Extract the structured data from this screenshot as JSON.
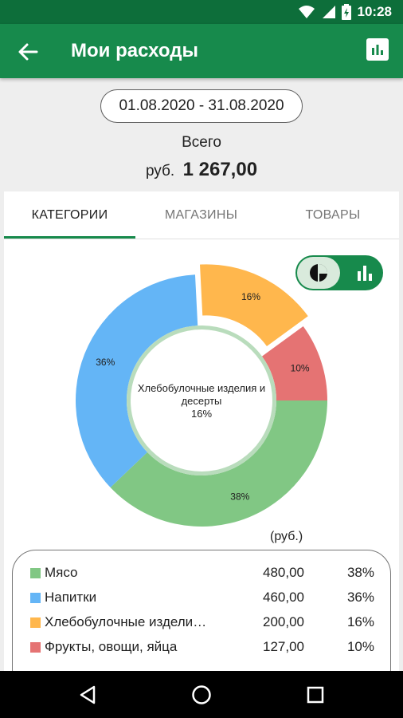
{
  "status_bar": {
    "time": "10:28"
  },
  "app_bar": {
    "title": "Мои расходы"
  },
  "date_range": "01.08.2020 - 31.08.2020",
  "total": {
    "label": "Всего",
    "currency": "руб.",
    "amount": "1 267,00"
  },
  "tabs": [
    {
      "label": "КАТЕГОРИИ",
      "active": true
    },
    {
      "label": "МАГАЗИНЫ",
      "active": false
    },
    {
      "label": "ТОВАРЫ",
      "active": false
    }
  ],
  "chart_data": {
    "type": "pie",
    "unit_label": "(руб.)",
    "center_label": {
      "name_line1": "Хлебобулочные изделия и",
      "name_line2": "десерты",
      "percent": "16%"
    },
    "slices": [
      {
        "name": "Мясо",
        "value": 480.0,
        "percent": 38,
        "label": "38%",
        "color": "#81c784"
      },
      {
        "name": "Напитки",
        "value": 460.0,
        "percent": 36,
        "label": "36%",
        "color": "#64b5f6"
      },
      {
        "name": "Хлебобулочные изделия и десерты",
        "value": 200.0,
        "percent": 16,
        "label": "16%",
        "color": "#ffb74d",
        "selected": true
      },
      {
        "name": "Фрукты, овощи, яйца",
        "value": 127.0,
        "percent": 10,
        "label": "10%",
        "color": "#e57373"
      }
    ]
  },
  "legend": [
    {
      "name": "Мясо",
      "value": "480,00",
      "percent": "38%",
      "color": "#81c784"
    },
    {
      "name": "Напитки",
      "value": "460,00",
      "percent": "36%",
      "color": "#64b5f6"
    },
    {
      "name": "Хлебобулочные изделия и десерты",
      "value": "200,00",
      "percent": "16%",
      "color": "#ffb74d"
    },
    {
      "name": "Фрукты, овощи, яйца",
      "value": "127,00",
      "percent": "10%",
      "color": "#e57373"
    }
  ],
  "icons": {
    "back": "arrow-left-icon",
    "stats": "bar-chart-icon",
    "pie_toggle": "pie-chart-icon",
    "bar_toggle": "bar-chart-icon"
  },
  "colors": {
    "primary": "#178a4c",
    "primary_dark": "#0d6e3a"
  }
}
